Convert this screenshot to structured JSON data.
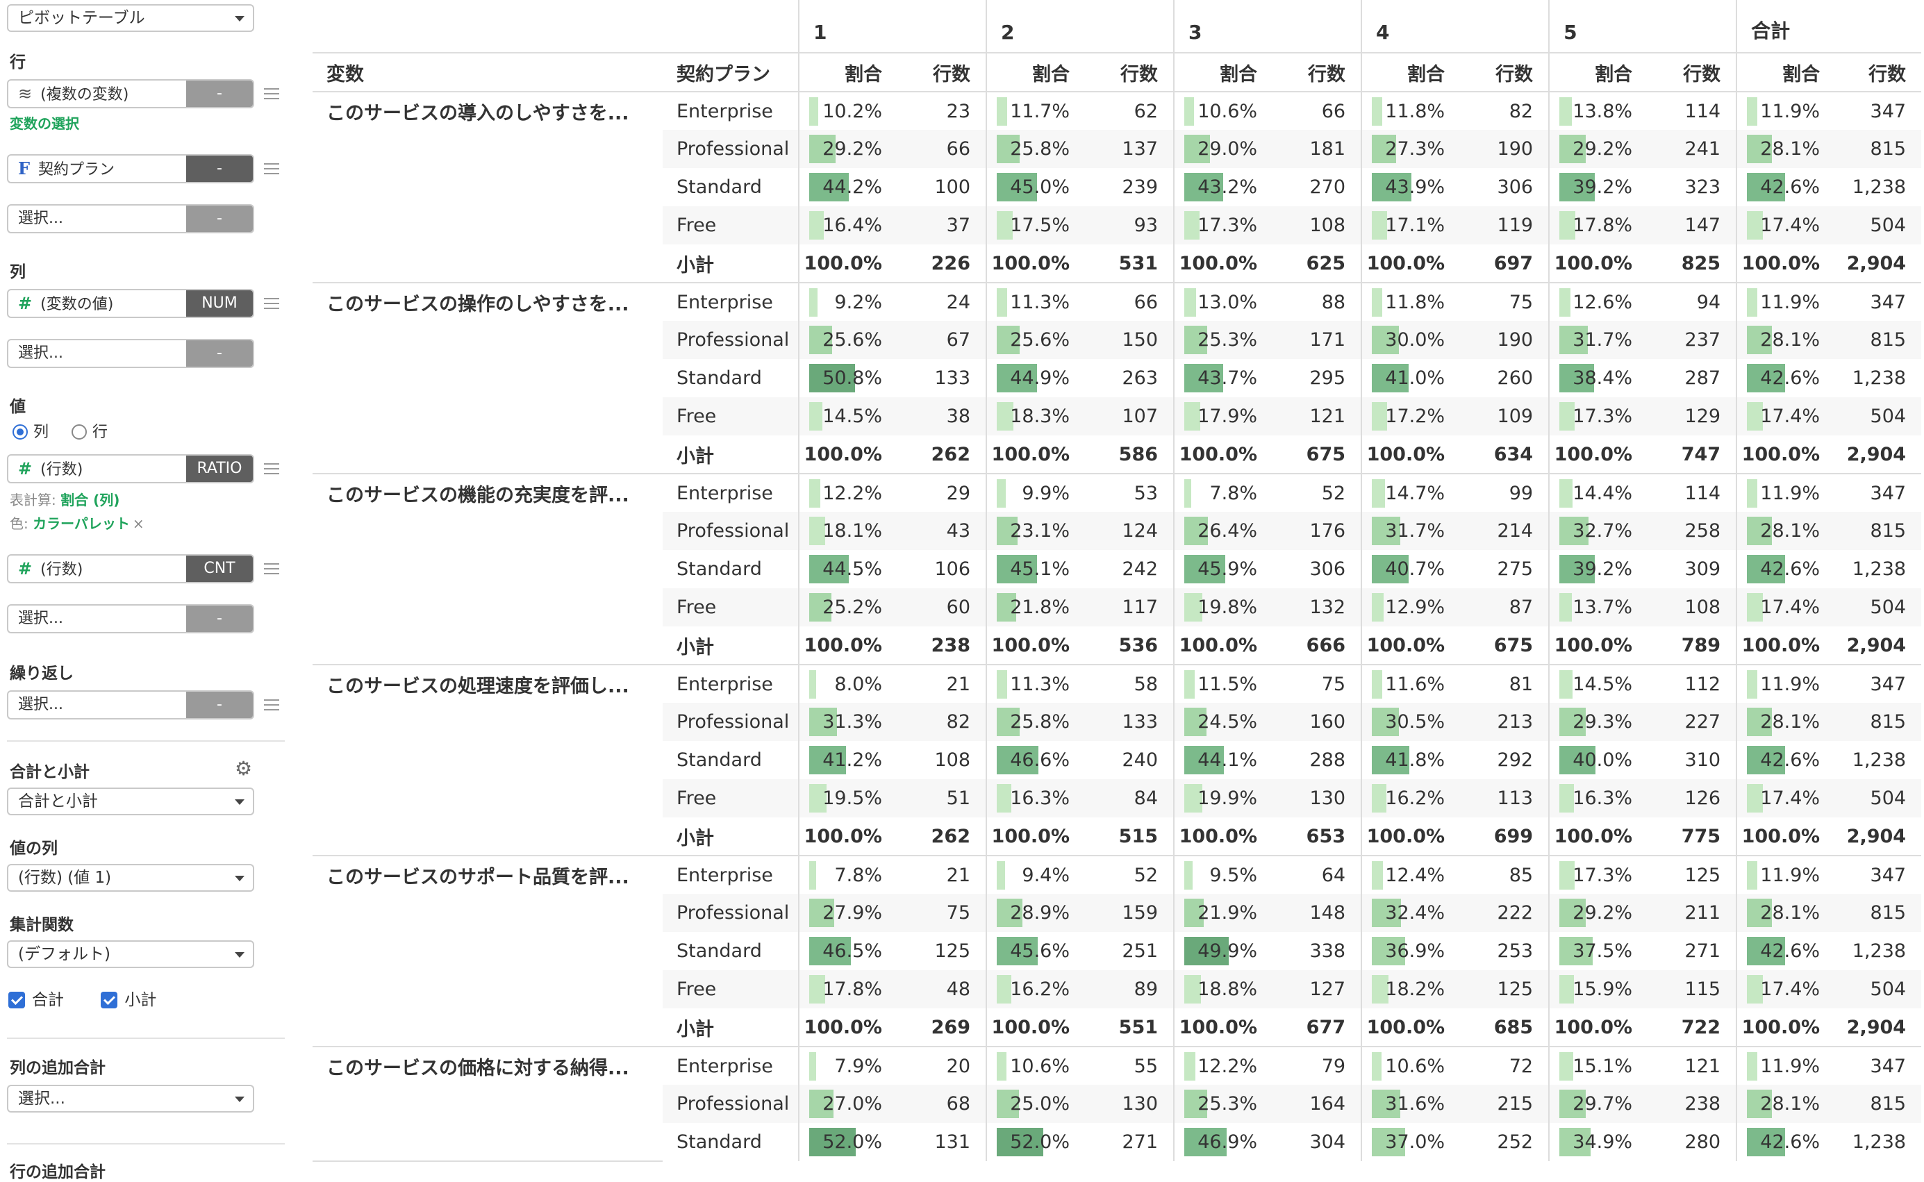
{
  "sidebar": {
    "view_select": "ピボットテーブル",
    "rows_label": "行",
    "row_pill": {
      "icon": "layers-icon",
      "text": "(複数の変数)",
      "btn": "-"
    },
    "var_select_link": "変数の選択",
    "row_pill2": {
      "icon": "F",
      "text": "契約プラン",
      "btn": "-"
    },
    "row_select": {
      "text": "選択...",
      "btn": "-"
    },
    "cols_label": "列",
    "col_pill": {
      "icon": "#",
      "text": "(変数の値)",
      "btn": "NUM"
    },
    "col_select": {
      "text": "選択...",
      "btn": "-"
    },
    "values_label": "値",
    "radio_col": "列",
    "radio_row": "行",
    "val_pill": {
      "icon": "#",
      "text": "(行数)",
      "btn": "RATIO"
    },
    "table_calc_prefix": "表計算:",
    "table_calc_value": "割合 (列)",
    "color_prefix": "色:",
    "color_value": "カラーパレット",
    "color_remove": "×",
    "val_pill2": {
      "icon": "#",
      "text": "(行数)",
      "btn": "CNT"
    },
    "val_select": {
      "text": "選択...",
      "btn": "-"
    },
    "repeat_label": "繰り返し",
    "repeat_select": {
      "text": "選択...",
      "btn": "-"
    },
    "totals_label": "合計と小計",
    "totals_select": "合計と小計",
    "value_col_label": "値の列",
    "value_col_select": "(行数) (値 1)",
    "agg_label": "集計関数",
    "agg_select": "(デフォルト)",
    "check_total": "合計",
    "check_subtotal": "小計",
    "extra_col_total_label": "列の追加合計",
    "extra_col_total_select": "選択...",
    "extra_row_total_label": "行の追加合計"
  },
  "table": {
    "col_groups": [
      "1",
      "2",
      "3",
      "4",
      "5",
      "合計"
    ],
    "header_var": "変数",
    "header_plan": "契約プラン",
    "header_ratio": "割合",
    "header_count": "行数",
    "subtotal_label": "小計",
    "groups": [
      {
        "var": "このサービスの導入のしやすさを...",
        "rows": [
          {
            "plan": "Enterprise",
            "cells": [
              [
                "10.2%",
                "23"
              ],
              [
                "11.7%",
                "62"
              ],
              [
                "10.6%",
                "66"
              ],
              [
                "11.8%",
                "82"
              ],
              [
                "13.8%",
                "114"
              ],
              [
                "11.9%",
                "347"
              ]
            ]
          },
          {
            "plan": "Professional",
            "cells": [
              [
                "29.2%",
                "66"
              ],
              [
                "25.8%",
                "137"
              ],
              [
                "29.0%",
                "181"
              ],
              [
                "27.3%",
                "190"
              ],
              [
                "29.2%",
                "241"
              ],
              [
                "28.1%",
                "815"
              ]
            ]
          },
          {
            "plan": "Standard",
            "cells": [
              [
                "44.2%",
                "100"
              ],
              [
                "45.0%",
                "239"
              ],
              [
                "43.2%",
                "270"
              ],
              [
                "43.9%",
                "306"
              ],
              [
                "39.2%",
                "323"
              ],
              [
                "42.6%",
                "1,238"
              ]
            ]
          },
          {
            "plan": "Free",
            "cells": [
              [
                "16.4%",
                "37"
              ],
              [
                "17.5%",
                "93"
              ],
              [
                "17.3%",
                "108"
              ],
              [
                "17.1%",
                "119"
              ],
              [
                "17.8%",
                "147"
              ],
              [
                "17.4%",
                "504"
              ]
            ]
          }
        ],
        "subtotal": [
          [
            "100.0%",
            "226"
          ],
          [
            "100.0%",
            "531"
          ],
          [
            "100.0%",
            "625"
          ],
          [
            "100.0%",
            "697"
          ],
          [
            "100.0%",
            "825"
          ],
          [
            "100.0%",
            "2,904"
          ]
        ]
      },
      {
        "var": "このサービスの操作のしやすさを...",
        "rows": [
          {
            "plan": "Enterprise",
            "cells": [
              [
                "9.2%",
                "24"
              ],
              [
                "11.3%",
                "66"
              ],
              [
                "13.0%",
                "88"
              ],
              [
                "11.8%",
                "75"
              ],
              [
                "12.6%",
                "94"
              ],
              [
                "11.9%",
                "347"
              ]
            ]
          },
          {
            "plan": "Professional",
            "cells": [
              [
                "25.6%",
                "67"
              ],
              [
                "25.6%",
                "150"
              ],
              [
                "25.3%",
                "171"
              ],
              [
                "30.0%",
                "190"
              ],
              [
                "31.7%",
                "237"
              ],
              [
                "28.1%",
                "815"
              ]
            ]
          },
          {
            "plan": "Standard",
            "cells": [
              [
                "50.8%",
                "133"
              ],
              [
                "44.9%",
                "263"
              ],
              [
                "43.7%",
                "295"
              ],
              [
                "41.0%",
                "260"
              ],
              [
                "38.4%",
                "287"
              ],
              [
                "42.6%",
                "1,238"
              ]
            ]
          },
          {
            "plan": "Free",
            "cells": [
              [
                "14.5%",
                "38"
              ],
              [
                "18.3%",
                "107"
              ],
              [
                "17.9%",
                "121"
              ],
              [
                "17.2%",
                "109"
              ],
              [
                "17.3%",
                "129"
              ],
              [
                "17.4%",
                "504"
              ]
            ]
          }
        ],
        "subtotal": [
          [
            "100.0%",
            "262"
          ],
          [
            "100.0%",
            "586"
          ],
          [
            "100.0%",
            "675"
          ],
          [
            "100.0%",
            "634"
          ],
          [
            "100.0%",
            "747"
          ],
          [
            "100.0%",
            "2,904"
          ]
        ]
      },
      {
        "var": "このサービスの機能の充実度を評...",
        "rows": [
          {
            "plan": "Enterprise",
            "cells": [
              [
                "12.2%",
                "29"
              ],
              [
                "9.9%",
                "53"
              ],
              [
                "7.8%",
                "52"
              ],
              [
                "14.7%",
                "99"
              ],
              [
                "14.4%",
                "114"
              ],
              [
                "11.9%",
                "347"
              ]
            ]
          },
          {
            "plan": "Professional",
            "cells": [
              [
                "18.1%",
                "43"
              ],
              [
                "23.1%",
                "124"
              ],
              [
                "26.4%",
                "176"
              ],
              [
                "31.7%",
                "214"
              ],
              [
                "32.7%",
                "258"
              ],
              [
                "28.1%",
                "815"
              ]
            ]
          },
          {
            "plan": "Standard",
            "cells": [
              [
                "44.5%",
                "106"
              ],
              [
                "45.1%",
                "242"
              ],
              [
                "45.9%",
                "306"
              ],
              [
                "40.7%",
                "275"
              ],
              [
                "39.2%",
                "309"
              ],
              [
                "42.6%",
                "1,238"
              ]
            ]
          },
          {
            "plan": "Free",
            "cells": [
              [
                "25.2%",
                "60"
              ],
              [
                "21.8%",
                "117"
              ],
              [
                "19.8%",
                "132"
              ],
              [
                "12.9%",
                "87"
              ],
              [
                "13.7%",
                "108"
              ],
              [
                "17.4%",
                "504"
              ]
            ]
          }
        ],
        "subtotal": [
          [
            "100.0%",
            "238"
          ],
          [
            "100.0%",
            "536"
          ],
          [
            "100.0%",
            "666"
          ],
          [
            "100.0%",
            "675"
          ],
          [
            "100.0%",
            "789"
          ],
          [
            "100.0%",
            "2,904"
          ]
        ]
      },
      {
        "var": "このサービスの処理速度を評価し...",
        "rows": [
          {
            "plan": "Enterprise",
            "cells": [
              [
                "8.0%",
                "21"
              ],
              [
                "11.3%",
                "58"
              ],
              [
                "11.5%",
                "75"
              ],
              [
                "11.6%",
                "81"
              ],
              [
                "14.5%",
                "112"
              ],
              [
                "11.9%",
                "347"
              ]
            ]
          },
          {
            "plan": "Professional",
            "cells": [
              [
                "31.3%",
                "82"
              ],
              [
                "25.8%",
                "133"
              ],
              [
                "24.5%",
                "160"
              ],
              [
                "30.5%",
                "213"
              ],
              [
                "29.3%",
                "227"
              ],
              [
                "28.1%",
                "815"
              ]
            ]
          },
          {
            "plan": "Standard",
            "cells": [
              [
                "41.2%",
                "108"
              ],
              [
                "46.6%",
                "240"
              ],
              [
                "44.1%",
                "288"
              ],
              [
                "41.8%",
                "292"
              ],
              [
                "40.0%",
                "310"
              ],
              [
                "42.6%",
                "1,238"
              ]
            ]
          },
          {
            "plan": "Free",
            "cells": [
              [
                "19.5%",
                "51"
              ],
              [
                "16.3%",
                "84"
              ],
              [
                "19.9%",
                "130"
              ],
              [
                "16.2%",
                "113"
              ],
              [
                "16.3%",
                "126"
              ],
              [
                "17.4%",
                "504"
              ]
            ]
          }
        ],
        "subtotal": [
          [
            "100.0%",
            "262"
          ],
          [
            "100.0%",
            "515"
          ],
          [
            "100.0%",
            "653"
          ],
          [
            "100.0%",
            "699"
          ],
          [
            "100.0%",
            "775"
          ],
          [
            "100.0%",
            "2,904"
          ]
        ]
      },
      {
        "var": "このサービスのサポート品質を評...",
        "rows": [
          {
            "plan": "Enterprise",
            "cells": [
              [
                "7.8%",
                "21"
              ],
              [
                "9.4%",
                "52"
              ],
              [
                "9.5%",
                "64"
              ],
              [
                "12.4%",
                "85"
              ],
              [
                "17.3%",
                "125"
              ],
              [
                "11.9%",
                "347"
              ]
            ]
          },
          {
            "plan": "Professional",
            "cells": [
              [
                "27.9%",
                "75"
              ],
              [
                "28.9%",
                "159"
              ],
              [
                "21.9%",
                "148"
              ],
              [
                "32.4%",
                "222"
              ],
              [
                "29.2%",
                "211"
              ],
              [
                "28.1%",
                "815"
              ]
            ]
          },
          {
            "plan": "Standard",
            "cells": [
              [
                "46.5%",
                "125"
              ],
              [
                "45.6%",
                "251"
              ],
              [
                "49.9%",
                "338"
              ],
              [
                "36.9%",
                "253"
              ],
              [
                "37.5%",
                "271"
              ],
              [
                "42.6%",
                "1,238"
              ]
            ]
          },
          {
            "plan": "Free",
            "cells": [
              [
                "17.8%",
                "48"
              ],
              [
                "16.2%",
                "89"
              ],
              [
                "18.8%",
                "127"
              ],
              [
                "18.2%",
                "125"
              ],
              [
                "15.9%",
                "115"
              ],
              [
                "17.4%",
                "504"
              ]
            ]
          }
        ],
        "subtotal": [
          [
            "100.0%",
            "269"
          ],
          [
            "100.0%",
            "551"
          ],
          [
            "100.0%",
            "677"
          ],
          [
            "100.0%",
            "685"
          ],
          [
            "100.0%",
            "722"
          ],
          [
            "100.0%",
            "2,904"
          ]
        ]
      },
      {
        "var": "このサービスの価格に対する納得...",
        "rows": [
          {
            "plan": "Enterprise",
            "cells": [
              [
                "7.9%",
                "20"
              ],
              [
                "10.6%",
                "55"
              ],
              [
                "12.2%",
                "79"
              ],
              [
                "10.6%",
                "72"
              ],
              [
                "15.1%",
                "121"
              ],
              [
                "11.9%",
                "347"
              ]
            ]
          },
          {
            "plan": "Professional",
            "cells": [
              [
                "27.0%",
                "68"
              ],
              [
                "25.0%",
                "130"
              ],
              [
                "25.3%",
                "164"
              ],
              [
                "31.6%",
                "215"
              ],
              [
                "29.7%",
                "238"
              ],
              [
                "28.1%",
                "815"
              ]
            ]
          },
          {
            "plan": "Standard",
            "cells": [
              [
                "52.0%",
                "131"
              ],
              [
                "52.0%",
                "271"
              ],
              [
                "46.9%",
                "304"
              ],
              [
                "37.0%",
                "252"
              ],
              [
                "34.9%",
                "280"
              ],
              [
                "42.6%",
                "1,238"
              ]
            ]
          }
        ]
      }
    ]
  }
}
